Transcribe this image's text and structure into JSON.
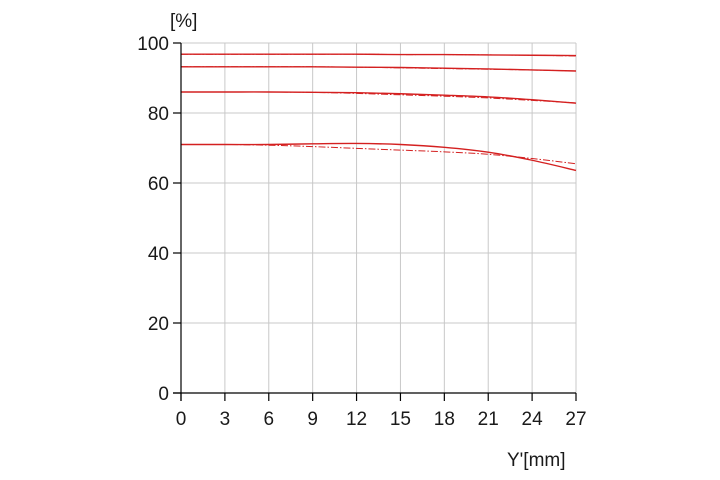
{
  "chart_data": {
    "type": "line",
    "title": "",
    "ylabel": "[%]",
    "xlabel": "Y'[mm]",
    "xlim": [
      0,
      27
    ],
    "ylim": [
      0,
      100
    ],
    "x_ticks": [
      0,
      3,
      6,
      9,
      12,
      15,
      18,
      21,
      24,
      27
    ],
    "y_ticks": [
      0,
      20,
      40,
      60,
      80,
      100
    ],
    "grid": true,
    "legend": "none",
    "line_color": "#d42020",
    "grid_color": "#c8c8c8",
    "axis_color": "#000000",
    "x": [
      0,
      3,
      6,
      9,
      12,
      15,
      18,
      21,
      24,
      27
    ],
    "series": [
      {
        "style": "solid",
        "values": [
          96.8,
          96.8,
          96.8,
          96.8,
          96.8,
          96.7,
          96.7,
          96.6,
          96.5,
          96.4
        ]
      },
      {
        "style": "dashed",
        "values": [
          96.8,
          96.8,
          96.8,
          96.8,
          96.8,
          96.7,
          96.7,
          96.6,
          96.5,
          96.3
        ]
      },
      {
        "style": "solid",
        "values": [
          93.2,
          93.2,
          93.2,
          93.2,
          93.1,
          93.0,
          92.8,
          92.6,
          92.3,
          92.0
        ]
      },
      {
        "style": "dashed",
        "values": [
          93.2,
          93.2,
          93.2,
          93.2,
          93.1,
          92.9,
          92.7,
          92.5,
          92.3,
          92.0
        ]
      },
      {
        "style": "solid",
        "values": [
          86.0,
          86.0,
          86.0,
          85.9,
          85.8,
          85.5,
          85.1,
          84.6,
          83.8,
          82.8
        ]
      },
      {
        "style": "dashed",
        "values": [
          86.0,
          86.0,
          86.0,
          85.9,
          85.6,
          85.2,
          84.8,
          84.3,
          83.6,
          82.9
        ]
      },
      {
        "style": "solid",
        "values": [
          71.0,
          71.0,
          71.0,
          71.2,
          71.3,
          71.0,
          70.2,
          68.8,
          66.5,
          63.6
        ]
      },
      {
        "style": "dashed",
        "values": [
          71.0,
          71.0,
          70.8,
          70.4,
          69.9,
          69.4,
          68.9,
          68.2,
          67.0,
          65.5
        ]
      }
    ]
  }
}
